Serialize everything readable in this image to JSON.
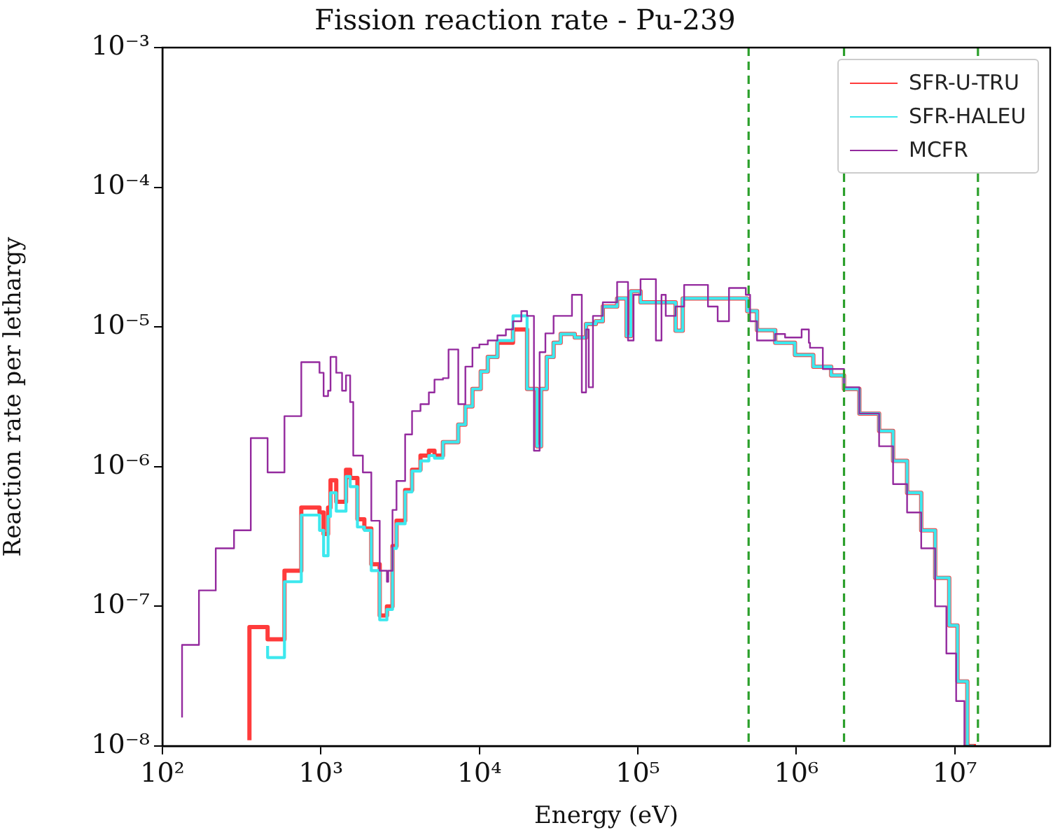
{
  "chart_data": {
    "type": "step",
    "title": "Fission reaction rate - Pu-239",
    "xlabel": "Energy (eV)",
    "ylabel": "Reaction rate per lethargy",
    "log": "xy",
    "grid": false,
    "legend": "top right",
    "marker": "none",
    "line_style": "solid",
    "xlim": [
      100,
      40000000
    ],
    "ylim": [
      1e-08,
      0.001
    ],
    "xticks": [
      {
        "value": 100,
        "label": "10²"
      },
      {
        "value": 1000,
        "label": "10³"
      },
      {
        "value": 10000,
        "label": "10⁴"
      },
      {
        "value": 100000,
        "label": "10⁵"
      },
      {
        "value": 1000000,
        "label": "10⁶"
      },
      {
        "value": 10000000,
        "label": "10⁷"
      }
    ],
    "yticks": [
      {
        "value": 1e-08,
        "label": "10⁻⁸"
      },
      {
        "value": 1e-07,
        "label": "10⁻⁷"
      },
      {
        "value": 1e-06,
        "label": "10⁻⁶"
      },
      {
        "value": 1e-05,
        "label": "10⁻⁵"
      },
      {
        "value": 0.0001,
        "label": "10⁻⁴"
      },
      {
        "value": 0.001,
        "label": "10⁻³"
      }
    ],
    "ref_lines": [
      {
        "axis": "x",
        "value": 500000,
        "color": "#2ca02c",
        "line_style": "dashed"
      },
      {
        "axis": "x",
        "value": 2000000,
        "color": "#2ca02c",
        "line_style": "dashed"
      },
      {
        "axis": "x",
        "value": 14000000,
        "color": "#2ca02c",
        "line_style": "dashed"
      }
    ],
    "series": [
      {
        "name": "SFR-U-TRU",
        "color": "#ff3b3b",
        "x": [
          354,
          461,
          589,
          752,
          980,
          1040,
          1110,
          1150,
          1250,
          1440,
          1530,
          1700,
          1880,
          2080,
          2350,
          2610,
          2830,
          3000,
          3400,
          3760,
          4250,
          4800,
          5210,
          5890,
          7360,
          8160,
          9040,
          10200,
          11300,
          13000,
          16300,
          20000,
          23100,
          24500,
          26600,
          29400,
          32600,
          40000,
          47100,
          54300,
          60100,
          74000,
          84900,
          90400,
          104000,
          173000,
          192000,
          203000,
          490000,
          565000,
          736000,
          980000,
          1280000,
          1660000,
          2000000,
          2500000,
          3330000,
          4080000,
          5000000,
          6140000,
          7520000,
          9220000,
          10400000,
          12000000,
          13600000
        ],
        "values": [
          1.1e-08,
          7.1e-08,
          5.8e-08,
          1.8e-07,
          5.1e-07,
          4.7e-07,
          3.3e-07,
          5.1e-07,
          8e-07,
          5.6e-07,
          9.5e-07,
          8.3e-07,
          4.2e-07,
          3.6e-07,
          2e-07,
          8.6e-08,
          1e-07,
          2.7e-07,
          4.1e-07,
          6.8e-07,
          9.5e-07,
          1.2e-06,
          1.3e-06,
          1.2e-06,
          1.5e-06,
          2e-06,
          2.7e-06,
          3.6e-06,
          4.8e-06,
          6.1e-06,
          7.7e-06,
          9.6e-06,
          3.6e-06,
          1.4e-06,
          3.6e-06,
          6.1e-06,
          7.7e-06,
          8.9e-06,
          8.4e-06,
          1.05e-05,
          1.1e-05,
          1.4e-05,
          1.6e-05,
          8.6e-06,
          1.8e-05,
          1.5e-05,
          9.4e-06,
          1.6e-05,
          1.6e-05,
          1.3e-05,
          9.5e-06,
          7.7e-06,
          6.3e-06,
          5.2e-06,
          4.5e-06,
          3.6e-06,
          2.4e-06,
          1.8e-06,
          1.1e-06,
          6.5e-07,
          3.5e-07,
          1.6e-07,
          7.3e-08,
          2.9e-08,
          1e-08
        ]
      },
      {
        "name": "SFR-HALEU",
        "color": "#3de8ee",
        "x": [
          461,
          589,
          752,
          980,
          1040,
          1110,
          1150,
          1250,
          1440,
          1530,
          1700,
          1880,
          2080,
          2350,
          2610,
          2830,
          3000,
          3400,
          3760,
          4250,
          4800,
          5210,
          5890,
          7360,
          8160,
          9040,
          10200,
          11300,
          13000,
          16300,
          20000,
          23100,
          24500,
          26600,
          29400,
          32600,
          40000,
          47100,
          54300,
          60100,
          74000,
          84900,
          90400,
          104000,
          173000,
          192000,
          203000,
          490000,
          565000,
          736000,
          980000,
          1280000,
          1660000,
          2000000,
          2500000,
          3330000,
          4080000,
          5000000,
          6140000,
          7520000,
          9220000,
          10400000,
          12000000,
          13200000
        ],
        "values": [
          5.2e-08,
          4.3e-08,
          1.5e-07,
          4.5e-07,
          3.5e-07,
          2.3e-07,
          4.4e-07,
          6.5e-07,
          4.8e-07,
          8.5e-07,
          7.2e-07,
          3.7e-07,
          3.5e-07,
          1.8e-07,
          8e-08,
          9.5e-08,
          2.6e-07,
          3.9e-07,
          6.6e-07,
          9.3e-07,
          1.1e-06,
          1.2e-06,
          1.15e-06,
          1.5e-06,
          2e-06,
          2.7e-06,
          3.6e-06,
          4.8e-06,
          6.1e-06,
          8e-06,
          1.2e-05,
          3.6e-06,
          1.4e-06,
          3.6e-06,
          6.1e-06,
          7.7e-06,
          8.9e-06,
          8.4e-06,
          1.05e-05,
          1.1e-05,
          1.4e-05,
          1.6e-05,
          8.6e-06,
          1.8e-05,
          1.5e-05,
          9.4e-06,
          1.6e-05,
          1.6e-05,
          1.3e-05,
          9.5e-06,
          7.7e-06,
          6.3e-06,
          5.2e-06,
          4.5e-06,
          3.6e-06,
          2.4e-06,
          1.8e-06,
          1.1e-06,
          6.5e-07,
          3.5e-07,
          1.6e-07,
          7.3e-08,
          2.9e-08,
          1e-08
        ]
      },
      {
        "name": "MCFR",
        "color": "#942a9e",
        "x": [
          133,
          170,
          217,
          283,
          361,
          461,
          589,
          752,
          980,
          1040,
          1110,
          1150,
          1250,
          1360,
          1440,
          1530,
          1600,
          1840,
          2080,
          2350,
          2610,
          2660,
          2830,
          3000,
          3400,
          3760,
          4250,
          4800,
          5210,
          5890,
          6390,
          7360,
          8160,
          9040,
          10000,
          11300,
          13000,
          14700,
          16300,
          18400,
          20000,
          22100,
          24000,
          26100,
          29400,
          38400,
          44300,
          47100,
          49000,
          52100,
          54300,
          60100,
          74000,
          86700,
          94000,
          104000,
          130000,
          141000,
          150000,
          173000,
          196000,
          277000,
          319000,
          376000,
          480000,
          511000,
          565000,
          736000,
          849000,
          1080000,
          1200000,
          1220000,
          1470000,
          2000000,
          2500000,
          3330000,
          4080000,
          5000000,
          6140000,
          7520000,
          8850000,
          10200000,
          11500000,
          12500000
        ],
        "values": [
          1.6e-08,
          5.3e-08,
          1.3e-07,
          2.6e-07,
          3.5e-07,
          1.6e-06,
          9.1e-07,
          2.3e-06,
          5.6e-06,
          4.7e-06,
          3.2e-06,
          3.5e-06,
          6.1e-06,
          4.7e-06,
          3.5e-06,
          4.5e-06,
          2.9e-06,
          1.2e-06,
          9.1e-07,
          4.1e-07,
          1.8e-07,
          1.5e-07,
          1.8e-07,
          4.9e-07,
          7.9e-07,
          1.7e-06,
          2.5e-06,
          2.8e-06,
          3.4e-06,
          4.2e-06,
          4.3e-06,
          6.9e-06,
          2.8e-06,
          5.2e-06,
          7.1e-06,
          7.5e-06,
          8e-06,
          8.7e-06,
          9.6e-06,
          1.1e-05,
          1.3e-05,
          1.2e-05,
          1.3e-06,
          6.6e-06,
          9e-06,
          1.2e-05,
          1.7e-05,
          3.4e-06,
          9.6e-06,
          3.7e-06,
          1.2e-05,
          1.2e-05,
          1.5e-05,
          2.1e-05,
          8e-06,
          1.7e-05,
          2.2e-05,
          8e-06,
          1.7e-05,
          1.2e-05,
          1.4e-05,
          2e-05,
          1.4e-05,
          1.1e-05,
          1.9e-05,
          1.7e-05,
          1.1e-05,
          8e-06,
          8.9e-06,
          8.4e-06,
          9.6e-06,
          7.7e-06,
          7.1e-06,
          5e-06,
          3.7e-06,
          2.4e-06,
          1.4e-06,
          7.5e-07,
          4.7e-07,
          2.6e-07,
          1e-07,
          4.6e-08,
          2.1e-08,
          1e-08
        ]
      }
    ]
  }
}
